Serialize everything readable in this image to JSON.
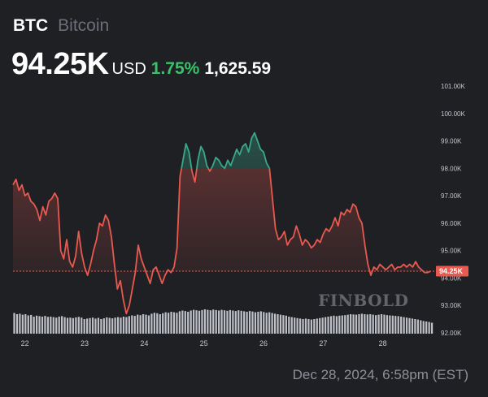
{
  "header": {
    "ticker": "BTC",
    "name": "Bitcoin",
    "price": "94.25K",
    "currency": "USD",
    "change_percent": "1.75%",
    "change_absolute": "1,625.59"
  },
  "current_price_label": "94.25K",
  "watermark": "FINBOLD",
  "timestamp": "Dec 28, 2024, 6:58pm (EST)",
  "colors": {
    "up_line": "#3aa889",
    "down_line": "#e8594f",
    "volume_bars": "#cfd2d9",
    "price_tag": "#e8594f",
    "positive_text": "#3ac26a"
  },
  "chart_data": {
    "type": "line",
    "ylim": [
      92000,
      101300
    ],
    "yticks": [
      "92.00K",
      "93.00K",
      "94.00K",
      "95.00K",
      "96.00K",
      "97.00K",
      "98.00K",
      "99.00K",
      "100.00K",
      "101.00K"
    ],
    "ytick_values": [
      92000,
      93000,
      94000,
      95000,
      96000,
      97000,
      98000,
      99000,
      100000,
      101000
    ],
    "xticks": [
      "22",
      "23",
      "24",
      "25",
      "26",
      "27",
      "28"
    ],
    "xtick_values": [
      22,
      23,
      24,
      25,
      26,
      27,
      28
    ],
    "xlim": [
      21.8,
      28.85
    ],
    "reference_price": 94250,
    "series": [
      {
        "x": [
          21.8,
          21.85,
          21.9,
          21.95,
          22.0,
          22.05,
          22.1,
          22.15,
          22.2,
          22.25,
          22.3,
          22.35,
          22.4,
          22.45,
          22.5,
          22.55,
          22.6,
          22.65,
          22.7,
          22.75,
          22.8,
          22.85,
          22.9,
          22.95,
          23.0,
          23.05,
          23.1,
          23.15,
          23.2,
          23.25,
          23.3,
          23.35,
          23.4,
          23.45,
          23.5,
          23.55,
          23.6,
          23.65,
          23.7,
          23.75,
          23.8,
          23.85,
          23.9,
          23.95,
          24.0,
          24.05,
          24.1,
          24.15,
          24.2,
          24.25,
          24.3,
          24.35,
          24.4,
          24.45,
          24.5,
          24.55,
          24.6,
          24.65,
          24.7,
          24.75,
          24.8,
          24.85,
          24.9,
          24.95,
          25.0,
          25.05,
          25.1,
          25.15,
          25.2,
          25.25,
          25.3,
          25.35,
          25.4,
          25.45,
          25.5,
          25.55,
          25.6,
          25.65,
          25.7,
          25.75,
          25.8,
          25.85,
          25.9,
          25.95,
          26.0,
          26.05,
          26.1,
          26.15,
          26.2,
          26.25,
          26.3,
          26.35,
          26.4,
          26.45,
          26.5,
          26.55,
          26.6,
          26.65,
          26.7,
          26.75,
          26.8,
          26.85,
          26.9,
          26.95,
          27.0,
          27.05,
          27.1,
          27.15,
          27.2,
          27.25,
          27.3,
          27.35,
          27.4,
          27.45,
          27.5,
          27.55,
          27.6,
          27.65,
          27.7,
          27.75,
          27.8,
          27.85,
          27.9,
          27.95,
          28.0,
          28.05,
          28.1,
          28.15,
          28.2,
          28.25,
          28.3,
          28.35,
          28.4,
          28.45,
          28.5,
          28.55,
          28.6,
          28.65,
          28.7,
          28.75,
          28.8
        ],
        "y": [
          97400,
          97600,
          97200,
          97400,
          97000,
          97100,
          96800,
          96700,
          96500,
          96100,
          96600,
          96300,
          96800,
          96900,
          97100,
          96900,
          95000,
          94700,
          95400,
          94600,
          94400,
          94800,
          95700,
          94900,
          94400,
          94100,
          94500,
          95000,
          95400,
          96000,
          95900,
          96300,
          96100,
          95500,
          94500,
          93600,
          93900,
          93200,
          92700,
          93000,
          93600,
          94200,
          95200,
          94700,
          94400,
          94100,
          93800,
          94300,
          94400,
          94100,
          93800,
          94100,
          94300,
          94200,
          94400,
          95100,
          97700,
          98300,
          98900,
          98600,
          97900,
          97500,
          98300,
          98800,
          98600,
          98100,
          97900,
          98100,
          98400,
          98300,
          98100,
          98000,
          98300,
          98100,
          98400,
          98700,
          98500,
          98800,
          98900,
          98600,
          99100,
          99300,
          99000,
          98700,
          98600,
          98200,
          98000,
          96900,
          95800,
          95400,
          95500,
          95700,
          95200,
          95400,
          95500,
          95900,
          95600,
          95200,
          95400,
          95300,
          95100,
          95200,
          95400,
          95300,
          95600,
          95800,
          95700,
          95900,
          96200,
          95900,
          96400,
          96300,
          96500,
          96400,
          96700,
          96600,
          96200,
          96000,
          95200,
          94500,
          94100,
          94400,
          94300,
          94500,
          94400,
          94300,
          94400,
          94500,
          94300,
          94400,
          94400,
          94500,
          94400,
          94500,
          94400,
          94600,
          94400,
          94300,
          94200,
          94200,
          94250
        ]
      }
    ],
    "volume": [
      0.85,
      0.8,
      0.82,
      0.78,
      0.8,
      0.75,
      0.77,
      0.7,
      0.74,
      0.72,
      0.7,
      0.73,
      0.69,
      0.7,
      0.68,
      0.66,
      0.7,
      0.72,
      0.68,
      0.65,
      0.66,
      0.64,
      0.67,
      0.69,
      0.66,
      0.6,
      0.62,
      0.64,
      0.66,
      0.62,
      0.65,
      0.6,
      0.63,
      0.67,
      0.65,
      0.63,
      0.66,
      0.68,
      0.66,
      0.7,
      0.68,
      0.72,
      0.75,
      0.73,
      0.78,
      0.76,
      0.8,
      0.78,
      0.75,
      0.82,
      0.86,
      0.84,
      0.8,
      0.84,
      0.88,
      0.86,
      0.9,
      0.88,
      0.86,
      0.92,
      0.95,
      0.93,
      0.9,
      0.95,
      0.98,
      0.96,
      0.94,
      0.97,
      1.0,
      0.98,
      0.96,
      0.99,
      0.97,
      0.95,
      0.98,
      0.96,
      0.94,
      0.97,
      0.95,
      0.93,
      0.96,
      0.94,
      0.92,
      0.9,
      0.93,
      0.91,
      0.88,
      0.9,
      0.92,
      0.89,
      0.86,
      0.88,
      0.85,
      0.82,
      0.8,
      0.78,
      0.76,
      0.74,
      0.7,
      0.68,
      0.66,
      0.64,
      0.62,
      0.6,
      0.62,
      0.6,
      0.58,
      0.6,
      0.62,
      0.64,
      0.66,
      0.68,
      0.7,
      0.72,
      0.74,
      0.72,
      0.74,
      0.75,
      0.76,
      0.78,
      0.8,
      0.79,
      0.78,
      0.8,
      0.82,
      0.8,
      0.79,
      0.8,
      0.78,
      0.76,
      0.78,
      0.8,
      0.78,
      0.76,
      0.75,
      0.74,
      0.73,
      0.72,
      0.7,
      0.68,
      0.66,
      0.64,
      0.62,
      0.6,
      0.58,
      0.55,
      0.52,
      0.5,
      0.48,
      0.45
    ],
    "grid": false,
    "legend": "none"
  }
}
